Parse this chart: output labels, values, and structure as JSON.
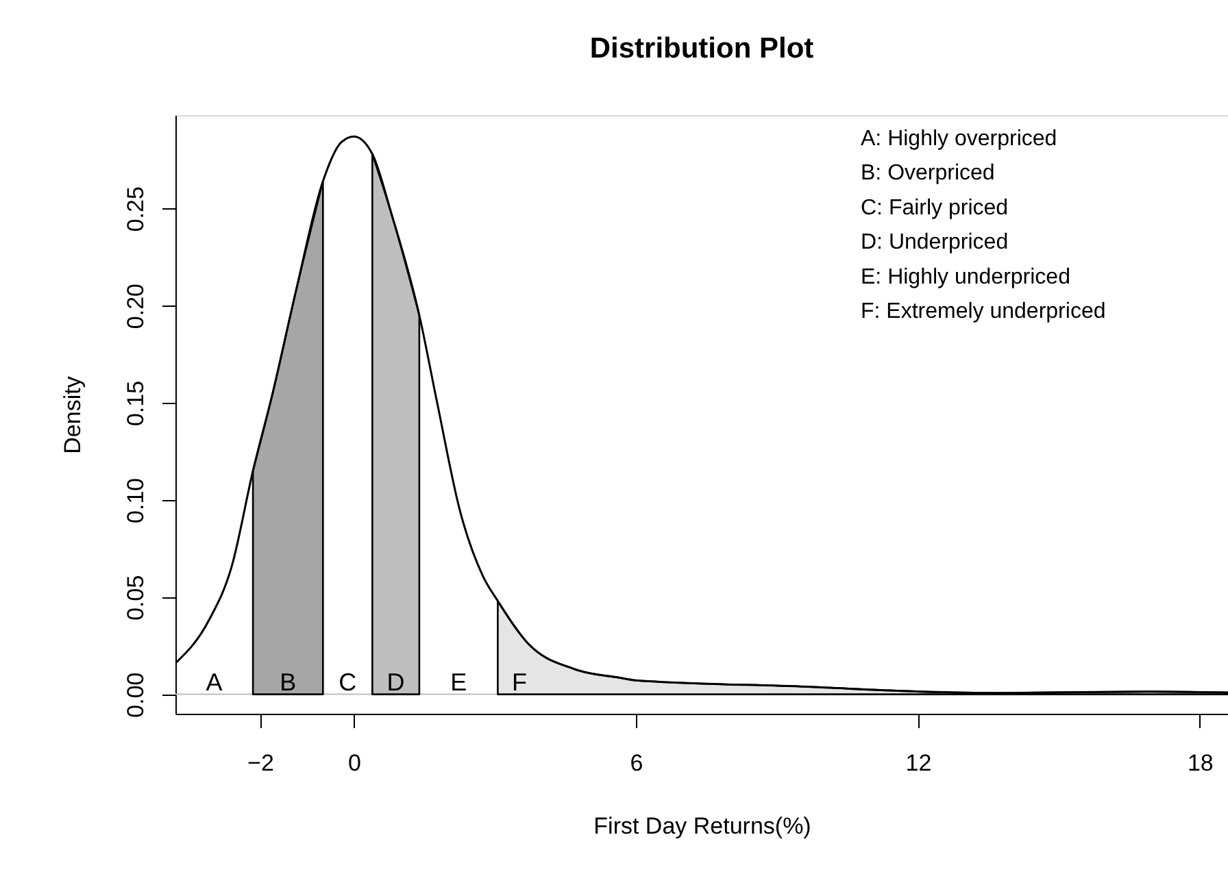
{
  "chart_data": {
    "type": "line",
    "title": "Distribution Plot",
    "xlabel": "First Day Returns(%)",
    "ylabel": "Density",
    "xlim": [
      -3.8,
      18.6
    ],
    "ylim": [
      -0.01,
      0.298
    ],
    "xticks": [
      -2,
      0,
      6,
      12,
      18
    ],
    "yticks": [
      {
        "value": 0,
        "label": "0.00"
      },
      0.05,
      {
        "value": 0.1,
        "label": "0.10"
      },
      0.15,
      {
        "value": 0.2,
        "label": "0.20"
      },
      0.25
    ],
    "grid": false,
    "series": [
      {
        "type": "area",
        "color": "#a6a6a6",
        "x": [
          -2.15,
          -1.73,
          -1.24,
          -0.66
        ],
        "values": [
          0.115,
          0.155,
          0.207,
          0.264
        ]
      },
      {
        "type": "area",
        "color": "#bebebe",
        "x": [
          0.39,
          0.8,
          1.39
        ],
        "values": [
          0.278,
          0.247,
          0.195
        ]
      },
      {
        "type": "area",
        "color": "#e5e5e5",
        "x": [
          3.06,
          3.71,
          4.69,
          5.66,
          6.0,
          9.64,
          12.03,
          13.8,
          16.93,
          18.6
        ],
        "values": [
          0.048,
          0.026,
          0.013,
          0.0085,
          0.0072,
          0.0039,
          0.0014,
          0.0007,
          0.0014,
          0.0009
        ]
      },
      {
        "color": "#000000",
        "x": [
          -3.8,
          -3.09,
          -2.6,
          -2.15,
          -1.73,
          -1.24,
          -0.66,
          -0.27,
          0,
          0.39,
          0.8,
          1.39,
          1.77,
          2.26,
          2.74,
          3.06,
          3.71,
          4.69,
          5.66,
          6.0,
          9.64,
          12.03,
          13.8,
          16.93,
          18.6
        ],
        "values": [
          0.016,
          0.038,
          0.066,
          0.115,
          0.155,
          0.207,
          0.264,
          0.284,
          0.287,
          0.278,
          0.247,
          0.195,
          0.15,
          0.094,
          0.061,
          0.048,
          0.026,
          0.013,
          0.0085,
          0.0072,
          0.0039,
          0.0014,
          0.0007,
          0.0014,
          0.0009
        ]
      }
    ],
    "ref_lines": [
      {
        "axis": "y",
        "value": 0,
        "color": "#bebebe"
      }
    ],
    "annotations": [
      "A",
      "B",
      "C",
      "D",
      "E",
      "F",
      "A: Highly overpriced",
      "B: Overpriced",
      "C: Fairly priced",
      "D: Underpriced",
      "E: Highly underpriced",
      "F: Extremely underpriced"
    ]
  }
}
